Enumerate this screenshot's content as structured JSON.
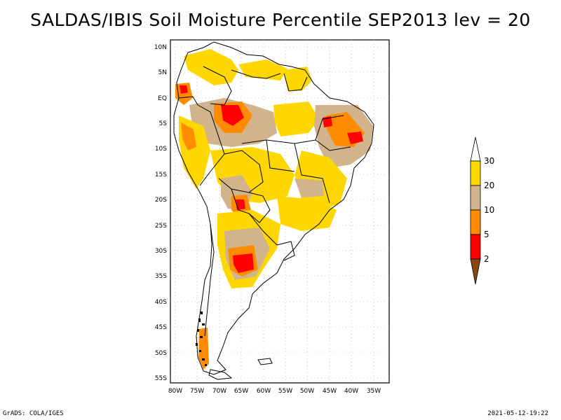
{
  "title": "SALDAS/IBIS Soil Moisture Percentile SEP2013 lev = 20",
  "footer": {
    "credit": "GrADS: COLA/IGES",
    "timestamp": "2021-05-12-19:22"
  },
  "map": {
    "region": "South America",
    "lat_labels": [
      "10N",
      "5N",
      "EQ",
      "5S",
      "10S",
      "15S",
      "20S",
      "25S",
      "30S",
      "35S",
      "40S",
      "45S",
      "50S",
      "55S"
    ],
    "lon_labels": [
      "80W",
      "75W",
      "70W",
      "65W",
      "60W",
      "55W",
      "50W",
      "45W",
      "40W",
      "35W"
    ]
  },
  "legend": {
    "labels": [
      "30",
      "20",
      "10",
      "5",
      "2"
    ],
    "colors": {
      "c30": "#ffd700",
      "c20": "#d2b48c",
      "c10": "#ff8c00",
      "c5": "#ff0000",
      "c2": "#8b4513"
    }
  }
}
